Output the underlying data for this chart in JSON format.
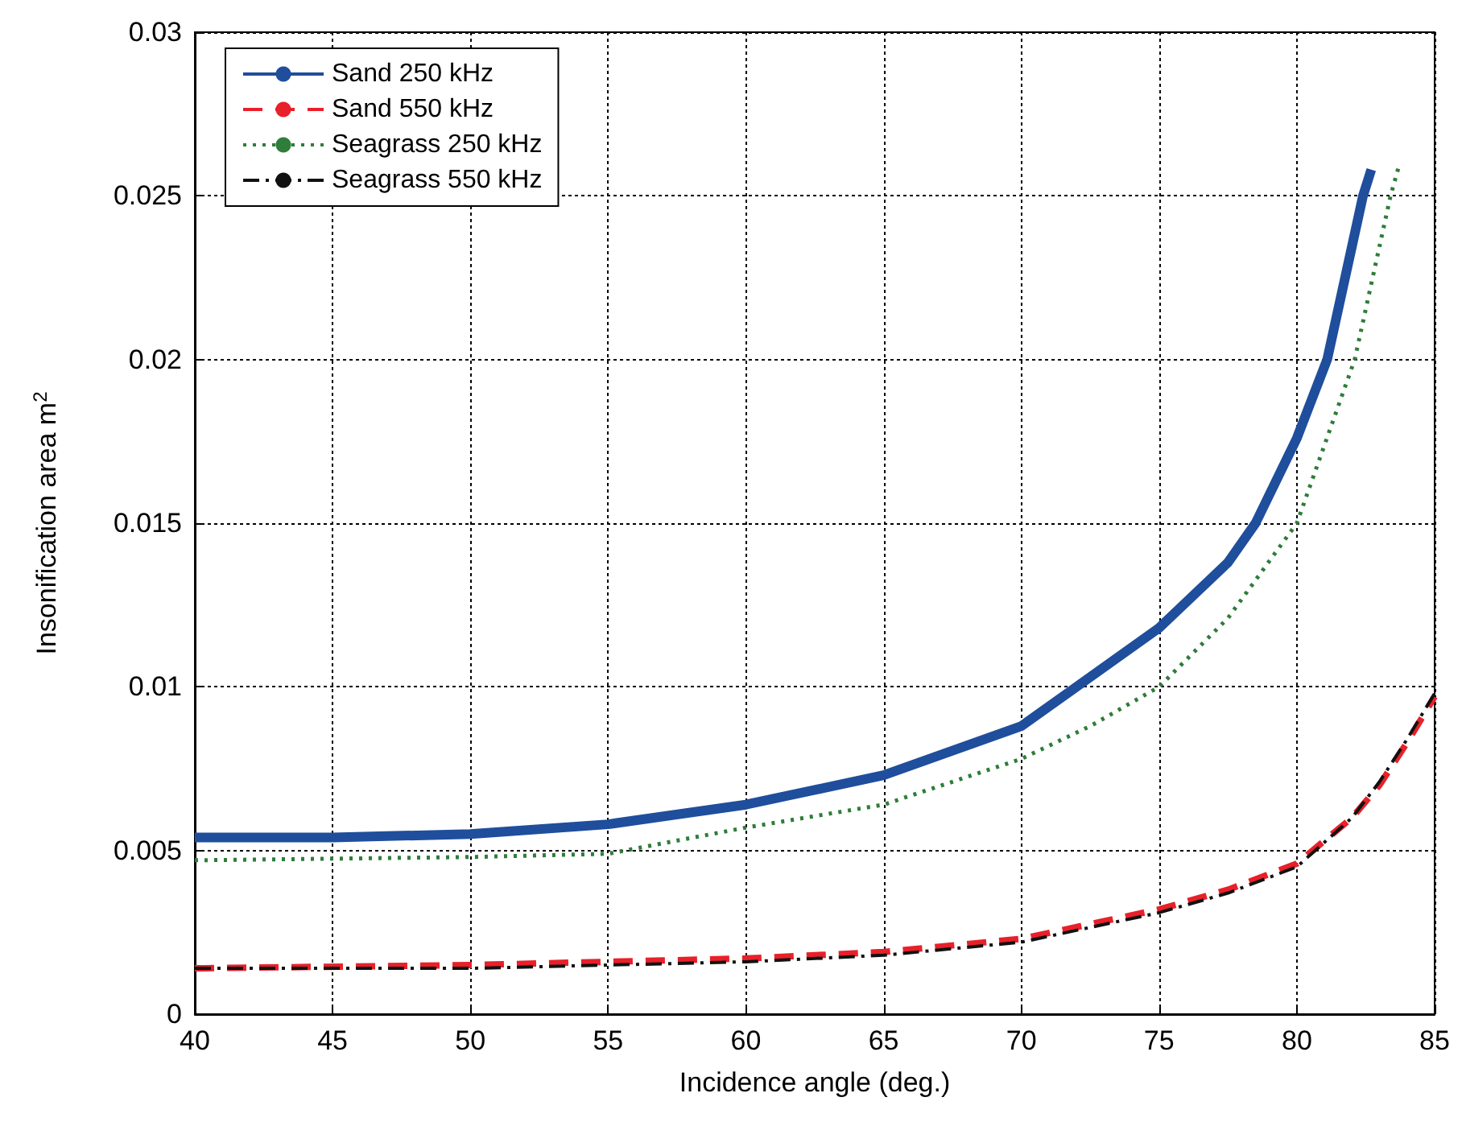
{
  "chart_data": {
    "type": "line",
    "xlabel": "Incidence angle (deg.)",
    "ylabel": "Insonification area m$^{2}$",
    "xlim": [
      40,
      85
    ],
    "xticks": [
      40,
      45,
      50,
      55,
      60,
      65,
      70,
      75,
      80,
      85
    ],
    "ylim": [
      0,
      0.03
    ],
    "yticks": [
      0,
      0.005,
      0.01,
      0.015,
      0.02,
      0.025,
      0.03
    ],
    "grid": true,
    "legend": "top left",
    "series": [
      {
        "name": "Sand 250 kHz",
        "color": "#1f4e9c",
        "line_style": "solid",
        "x": [
          40,
          45,
          50,
          55,
          60,
          65,
          70,
          72,
          75,
          77.5,
          78.5,
          80,
          81.1,
          82.4,
          82.7
        ],
        "values": [
          0.0054,
          0.0054,
          0.0055,
          0.0058,
          0.0064,
          0.0073,
          0.0088,
          0.01,
          0.0118,
          0.0138,
          0.015,
          0.0176,
          0.02,
          0.025,
          0.0258
        ]
      },
      {
        "name": "Sand 550 kHz",
        "color": "#e8202a",
        "line_style": "dashed",
        "x": [
          40,
          50,
          55,
          60,
          65,
          70,
          75,
          77.5,
          80,
          82,
          83,
          84,
          85
        ],
        "values": [
          0.0014,
          0.0015,
          0.0016,
          0.0017,
          0.0019,
          0.0023,
          0.0032,
          0.0038,
          0.0046,
          0.006,
          0.007,
          0.0083,
          0.0097
        ]
      },
      {
        "name": "Seagrass 250 kHz",
        "color": "#2e7d3a",
        "line_style": "dotted",
        "x": [
          40,
          50,
          55,
          60,
          65,
          70,
          72.5,
          75,
          77.5,
          80,
          82.1,
          83.4,
          83.7
        ],
        "values": [
          0.0047,
          0.0048,
          0.0049,
          0.0057,
          0.0064,
          0.0078,
          0.0088,
          0.01,
          0.0121,
          0.015,
          0.02,
          0.025,
          0.0259
        ]
      },
      {
        "name": "Seagrass 550 kHz",
        "color": "#111111",
        "line_style": "dashdot",
        "x": [
          40,
          50,
          55,
          60,
          65,
          70,
          75,
          77.5,
          80,
          82,
          83,
          84,
          85
        ],
        "values": [
          0.0014,
          0.0014,
          0.0015,
          0.0016,
          0.0018,
          0.0022,
          0.0031,
          0.0037,
          0.0045,
          0.006,
          0.0071,
          0.0084,
          0.0098
        ]
      }
    ]
  }
}
